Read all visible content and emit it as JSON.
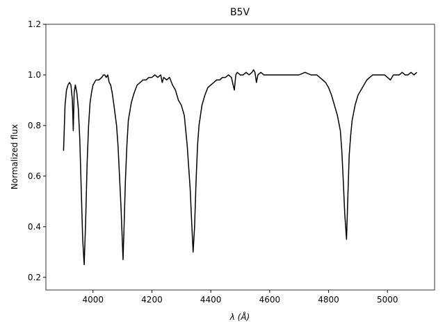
{
  "chart_data": {
    "type": "line",
    "title": "B5V",
    "xlabel": "λ (Å)",
    "ylabel": "Normalized flux",
    "x": [
      3900,
      3905,
      3910,
      3915,
      3920,
      3925,
      3930,
      3933,
      3936,
      3940,
      3945,
      3950,
      3955,
      3960,
      3965,
      3970,
      3975,
      3980,
      3985,
      3990,
      3995,
      4000,
      4010,
      4020,
      4030,
      4035,
      4040,
      4045,
      4050,
      4055,
      4060,
      4065,
      4070,
      4080,
      4085,
      4090,
      4095,
      4100,
      4102,
      4105,
      4110,
      4115,
      4120,
      4130,
      4140,
      4150,
      4160,
      4170,
      4180,
      4190,
      4200,
      4210,
      4220,
      4230,
      4235,
      4240,
      4250,
      4260,
      4270,
      4280,
      4290,
      4300,
      4310,
      4320,
      4330,
      4335,
      4340,
      4345,
      4350,
      4355,
      4360,
      4370,
      4380,
      4390,
      4400,
      4410,
      4420,
      4430,
      4440,
      4450,
      4460,
      4470,
      4480,
      4485,
      4490,
      4500,
      4510,
      4520,
      4530,
      4540,
      4545,
      4550,
      4555,
      4560,
      4570,
      4580,
      4600,
      4620,
      4640,
      4660,
      4680,
      4700,
      4720,
      4740,
      4760,
      4770,
      4780,
      4790,
      4800,
      4810,
      4820,
      4830,
      4840,
      4845,
      4850,
      4855,
      4861,
      4865,
      4870,
      4875,
      4880,
      4890,
      4900,
      4910,
      4920,
      4930,
      4940,
      4950,
      4960,
      4970,
      4980,
      4990,
      5000,
      5010,
      5020,
      5030,
      5040,
      5050,
      5060,
      5070,
      5080,
      5090,
      5100
    ],
    "values": [
      0.7,
      0.88,
      0.94,
      0.96,
      0.97,
      0.96,
      0.9,
      0.78,
      0.93,
      0.96,
      0.93,
      0.87,
      0.75,
      0.55,
      0.35,
      0.25,
      0.42,
      0.65,
      0.8,
      0.89,
      0.93,
      0.96,
      0.98,
      0.98,
      0.99,
      1.0,
      1.0,
      0.99,
      1.0,
      0.97,
      0.96,
      0.93,
      0.89,
      0.8,
      0.72,
      0.6,
      0.48,
      0.33,
      0.27,
      0.38,
      0.58,
      0.72,
      0.82,
      0.89,
      0.93,
      0.96,
      0.97,
      0.98,
      0.98,
      0.99,
      0.99,
      1.0,
      0.99,
      1.0,
      0.97,
      0.99,
      0.98,
      0.99,
      0.96,
      0.94,
      0.9,
      0.88,
      0.84,
      0.72,
      0.55,
      0.42,
      0.3,
      0.4,
      0.58,
      0.72,
      0.8,
      0.88,
      0.92,
      0.95,
      0.96,
      0.97,
      0.98,
      0.98,
      0.99,
      0.99,
      1.0,
      0.99,
      0.94,
      1.0,
      1.01,
      1.0,
      1.0,
      1.01,
      1.0,
      1.01,
      1.02,
      1.01,
      0.97,
      1.0,
      1.01,
      1.0,
      1.0,
      1.0,
      1.0,
      1.0,
      1.0,
      1.0,
      1.01,
      1.0,
      1.0,
      0.99,
      0.98,
      0.97,
      0.95,
      0.92,
      0.88,
      0.84,
      0.78,
      0.7,
      0.58,
      0.45,
      0.35,
      0.5,
      0.68,
      0.76,
      0.82,
      0.88,
      0.92,
      0.94,
      0.96,
      0.98,
      0.99,
      1.0,
      1.0,
      1.0,
      1.0,
      1.0,
      0.99,
      0.98,
      1.0,
      1.0,
      1.0,
      1.01,
      1.0,
      1.0,
      1.01,
      1.0,
      1.01
    ],
    "color": "#000000",
    "xlim": [
      3840,
      5160
    ],
    "xticks": [
      4000,
      4200,
      4400,
      4600,
      4800,
      5000
    ],
    "ylim": [
      0.15,
      1.2
    ],
    "yticks": [
      0.2,
      0.4,
      0.6,
      0.8,
      {
        "value": 1.0,
        "label": "1.0"
      },
      1.2
    ]
  }
}
